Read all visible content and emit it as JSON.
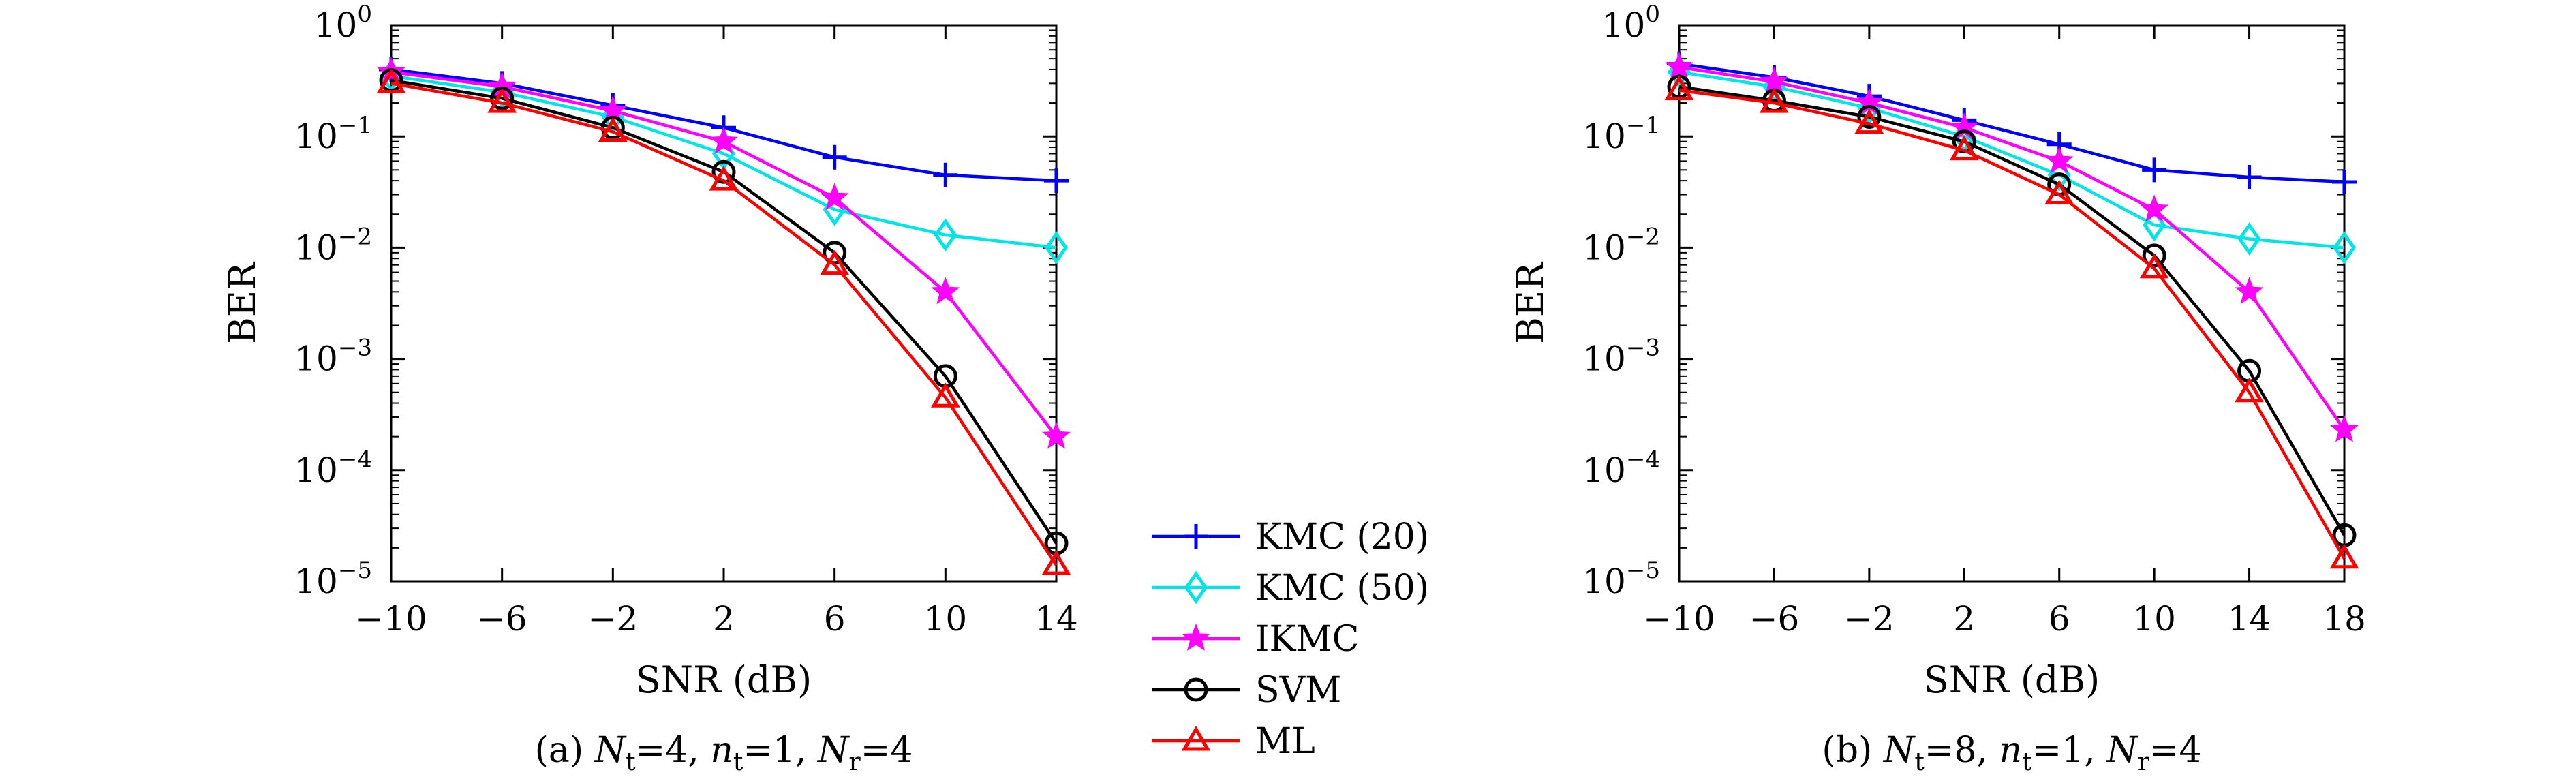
{
  "series_styles": [
    {
      "name": "KMC (20)",
      "color": "#0000ff",
      "marker": "plus"
    },
    {
      "name": "KMC (50)",
      "color": "#00e5e5",
      "marker": "diamond"
    },
    {
      "name": "IKMC",
      "color": "#ff00ff",
      "marker": "star"
    },
    {
      "name": "SVM",
      "color": "#000000",
      "marker": "circle"
    },
    {
      "name": "ML",
      "color": "#ff0000",
      "marker": "triangle"
    }
  ],
  "chart_data": [
    {
      "type": "line",
      "xlabel": "SNR (dB)",
      "ylabel": "BER",
      "y_scale": "log",
      "ylim": [
        1e-05,
        1
      ],
      "xlim": [
        -10,
        14
      ],
      "x": [
        -10,
        -6,
        -2,
        2,
        6,
        10,
        14
      ],
      "x_ticks": [
        "−10",
        "−6",
        "−2",
        "2",
        "6",
        "10",
        "14"
      ],
      "caption": {
        "prefix": "(a)",
        "parts": [
          {
            "sym": "N",
            "sub": "t",
            "val": "=4"
          },
          {
            "sym": "n",
            "sub": "t",
            "val": "=1"
          },
          {
            "sym": "N",
            "sub": "r",
            "val": "=4"
          }
        ]
      },
      "series": [
        {
          "name": "KMC (20)",
          "values": [
            0.4,
            0.3,
            0.19,
            0.12,
            0.065,
            0.045,
            0.04
          ]
        },
        {
          "name": "KMC (50)",
          "values": [
            0.35,
            0.25,
            0.15,
            0.07,
            0.022,
            0.013,
            0.01
          ]
        },
        {
          "name": "IKMC",
          "values": [
            0.38,
            0.28,
            0.17,
            0.09,
            0.028,
            0.004,
            0.0002
          ]
        },
        {
          "name": "SVM",
          "values": [
            0.32,
            0.22,
            0.12,
            0.048,
            0.009,
            0.0007,
            2.2e-05
          ]
        },
        {
          "name": "ML",
          "values": [
            0.3,
            0.2,
            0.11,
            0.04,
            0.007,
            0.00045,
            1.4e-05
          ]
        }
      ]
    },
    {
      "type": "line",
      "xlabel": "SNR (dB)",
      "ylabel": "BER",
      "y_scale": "log",
      "ylim": [
        1e-05,
        1
      ],
      "xlim": [
        -10,
        18
      ],
      "x": [
        -10,
        -6,
        -2,
        2,
        6,
        10,
        14,
        18
      ],
      "x_ticks": [
        "−10",
        "−6",
        "−2",
        "2",
        "6",
        "10",
        "14",
        "18"
      ],
      "caption": {
        "prefix": "(b)",
        "parts": [
          {
            "sym": "N",
            "sub": "t",
            "val": "=8"
          },
          {
            "sym": "n",
            "sub": "t",
            "val": "=1"
          },
          {
            "sym": "N",
            "sub": "r",
            "val": "=4"
          }
        ]
      },
      "series": [
        {
          "name": "KMC (20)",
          "values": [
            0.45,
            0.34,
            0.23,
            0.14,
            0.085,
            0.05,
            0.043,
            0.039
          ]
        },
        {
          "name": "KMC (50)",
          "values": [
            0.38,
            0.28,
            0.18,
            0.1,
            0.045,
            0.016,
            0.012,
            0.01
          ]
        },
        {
          "name": "IKMC",
          "values": [
            0.42,
            0.31,
            0.2,
            0.12,
            0.06,
            0.022,
            0.004,
            0.00023
          ]
        },
        {
          "name": "SVM",
          "values": [
            0.28,
            0.21,
            0.15,
            0.09,
            0.037,
            0.0085,
            0.00078,
            2.6e-05
          ]
        },
        {
          "name": "ML",
          "values": [
            0.26,
            0.2,
            0.13,
            0.075,
            0.03,
            0.0065,
            0.0005,
            1.6e-05
          ]
        }
      ]
    }
  ]
}
